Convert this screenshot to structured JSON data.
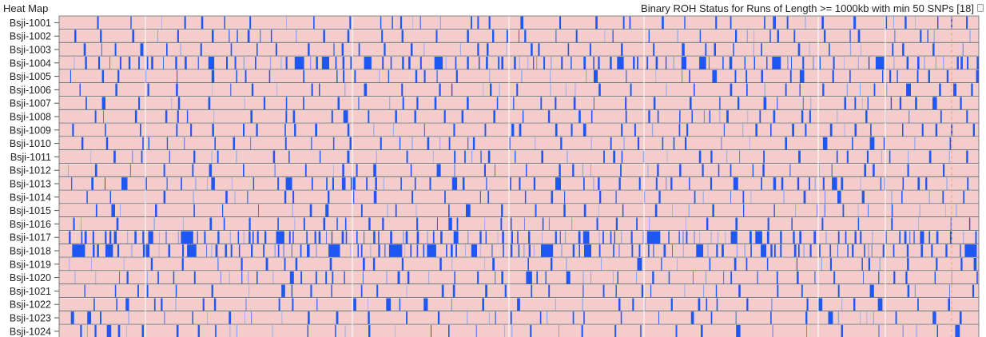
{
  "panel": {
    "title": "Heat Map",
    "close_icon": "close-icon"
  },
  "chart_data": {
    "type": "heatmap",
    "title": "Binary ROH Status for Runs of Length >= 1000kb with min 50 SNPs [18]",
    "rows": [
      "Bsji-1001",
      "Bsji-1002",
      "Bsji-1003",
      "Bsji-1004",
      "Bsji-1005",
      "Bsji-1006",
      "Bsji-1007",
      "Bsji-1008",
      "Bsji-1009",
      "Bsji-1010",
      "Bsji-1011",
      "Bsji-1012",
      "Bsji-1013",
      "Bsji-1014",
      "Bsji-1015",
      "Bsji-1016",
      "Bsji-1017",
      "Bsji-1018",
      "Bsji-1019",
      "Bsji-1020",
      "Bsji-1021",
      "Bsji-1022",
      "Bsji-1023",
      "Bsji-1024"
    ],
    "value_levels": [
      "not in ROH",
      "in ROH"
    ],
    "colors": {
      "not_in_roh": "#f3cccb",
      "in_roh": "#1f57f5",
      "in_roh_light": "#8ea8f3",
      "row_separator": "#555555",
      "marker_line": "#f2a06a"
    },
    "legend": "none",
    "grid": false
  }
}
